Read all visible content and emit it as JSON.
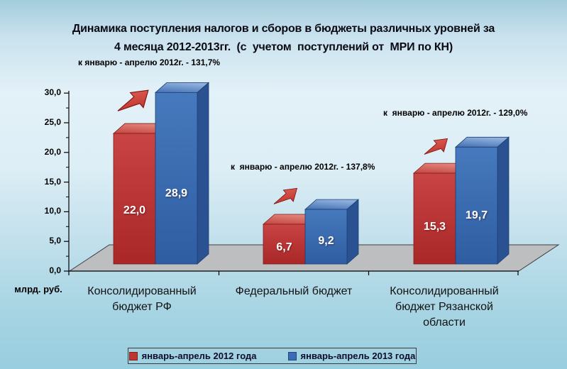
{
  "chart_data": {
    "type": "bar",
    "title": "Динамика поступления налогов и сборов в бюджеты различных уровней за 4 месяца 2012-2013гг.  (с  учетом  поступлений от  МРИ по КН)",
    "title_lines": [
      "Динамика поступления налогов и сборов в бюджеты различных уровней за",
      "4 месяца 2012-2013гг.  (с  учетом  поступлений от  МРИ по КН)"
    ],
    "categories": [
      "Консолидированный бюджет РФ",
      "Федеральный бюджет",
      "Консолидированный бюджет Рязанской области"
    ],
    "series": [
      {
        "name": "январь-апрель 2012 года",
        "color": "#bf3331",
        "values": [
          22.0,
          6.7,
          15.3
        ],
        "labels": [
          "22,0",
          "6,7",
          "15,3"
        ]
      },
      {
        "name": "январь-апрель 2013 года",
        "color": "#3a6cb5",
        "values": [
          28.9,
          9.2,
          19.7
        ],
        "labels": [
          "28,9",
          "9,2",
          "19,7"
        ]
      }
    ],
    "annotations": [
      "к январю - апрелю 2012г. - 131,7%",
      "к  январю - апрелю 2012г. - 137,8%",
      "к  январю - апрелю 2012г. - 129,0%"
    ],
    "ylabel": "млрд. руб.",
    "yticks": [
      "0,0",
      "5,0",
      "10,0",
      "15,0",
      "20,0",
      "25,0",
      "30,0"
    ],
    "ylim": [
      0,
      30
    ],
    "legend_position": "bottom",
    "grid": false,
    "style_3d": true
  }
}
